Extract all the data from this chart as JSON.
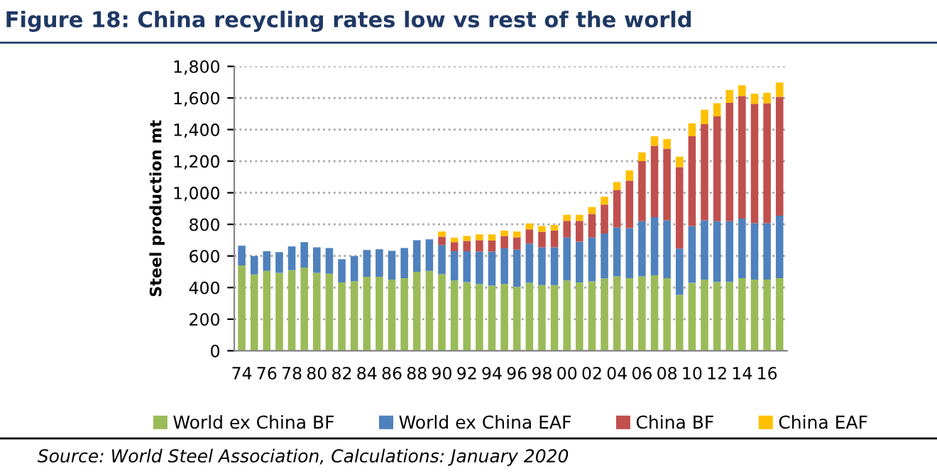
{
  "chart_data": {
    "type": "bar",
    "stacked": true,
    "title": "Figure 18: China recycling rates low vs rest of the world",
    "ylabel": "Steel production mt",
    "categories": [
      "74",
      null,
      "76",
      null,
      "78",
      null,
      "80",
      null,
      "82",
      null,
      "84",
      null,
      "86",
      null,
      "88",
      null,
      "90",
      null,
      "92",
      null,
      "94",
      null,
      "96",
      null,
      "98",
      null,
      "00",
      null,
      "02",
      null,
      "04",
      null,
      "06",
      null,
      "08",
      null,
      "10",
      null,
      "12",
      null,
      "14",
      null,
      "16",
      null
    ],
    "series": [
      {
        "name": "World ex China BF",
        "color": "#9bbb59",
        "values": [
          540,
          483,
          505,
          493,
          510,
          527,
          493,
          488,
          433,
          440,
          468,
          468,
          450,
          460,
          500,
          505,
          485,
          445,
          435,
          422,
          412,
          422,
          405,
          430,
          416,
          416,
          445,
          433,
          439,
          457,
          471,
          460,
          471,
          477,
          460,
          354,
          430,
          451,
          436,
          436,
          460,
          451,
          451,
          460
        ]
      },
      {
        "name": "World ex China EAF",
        "color": "#4f81bd",
        "values": [
          125,
          117,
          125,
          132,
          150,
          161,
          162,
          162,
          147,
          160,
          170,
          175,
          182,
          190,
          200,
          200,
          185,
          185,
          195,
          206,
          216,
          226,
          235,
          248,
          239,
          239,
          272,
          258,
          278,
          286,
          310,
          316,
          349,
          369,
          365,
          293,
          360,
          374,
          384,
          384,
          377,
          357,
          357,
          395
        ]
      },
      {
        "name": "China BF",
        "color": "#c0504d",
        "values": [
          null,
          null,
          null,
          null,
          null,
          null,
          null,
          null,
          null,
          null,
          null,
          null,
          null,
          null,
          null,
          null,
          52,
          58,
          65,
          72,
          70,
          79,
          78,
          90,
          97,
          106,
          105,
          131,
          149,
          182,
          237,
          301,
          380,
          451,
          454,
          515,
          568,
          609,
          664,
          749,
          776,
          755,
          758,
          752
        ]
      },
      {
        "name": "China EAF",
        "color": "#ffc000",
        "values": [
          null,
          null,
          null,
          null,
          null,
          null,
          null,
          null,
          null,
          null,
          null,
          null,
          null,
          null,
          null,
          null,
          33,
          27,
          32,
          37,
          39,
          33,
          37,
          37,
          38,
          35,
          38,
          38,
          44,
          50,
          50,
          64,
          56,
          61,
          61,
          67,
          82,
          91,
          82,
          82,
          67,
          64,
          67,
          91
        ]
      }
    ],
    "ylim": [
      0,
      1800
    ],
    "yticks": [
      0,
      200,
      400,
      600,
      800,
      {
        "value": 1000,
        "label": "1,000"
      },
      {
        "value": 1200,
        "label": "1,200"
      },
      {
        "value": 1400,
        "label": "1,400"
      },
      {
        "value": 1600,
        "label": "1,600"
      },
      {
        "value": 1800,
        "label": "1,800"
      }
    ],
    "grid": "y",
    "legend": "bottom",
    "annotations": [
      "Source: World Steel Association, Calculations: January 2020"
    ]
  }
}
